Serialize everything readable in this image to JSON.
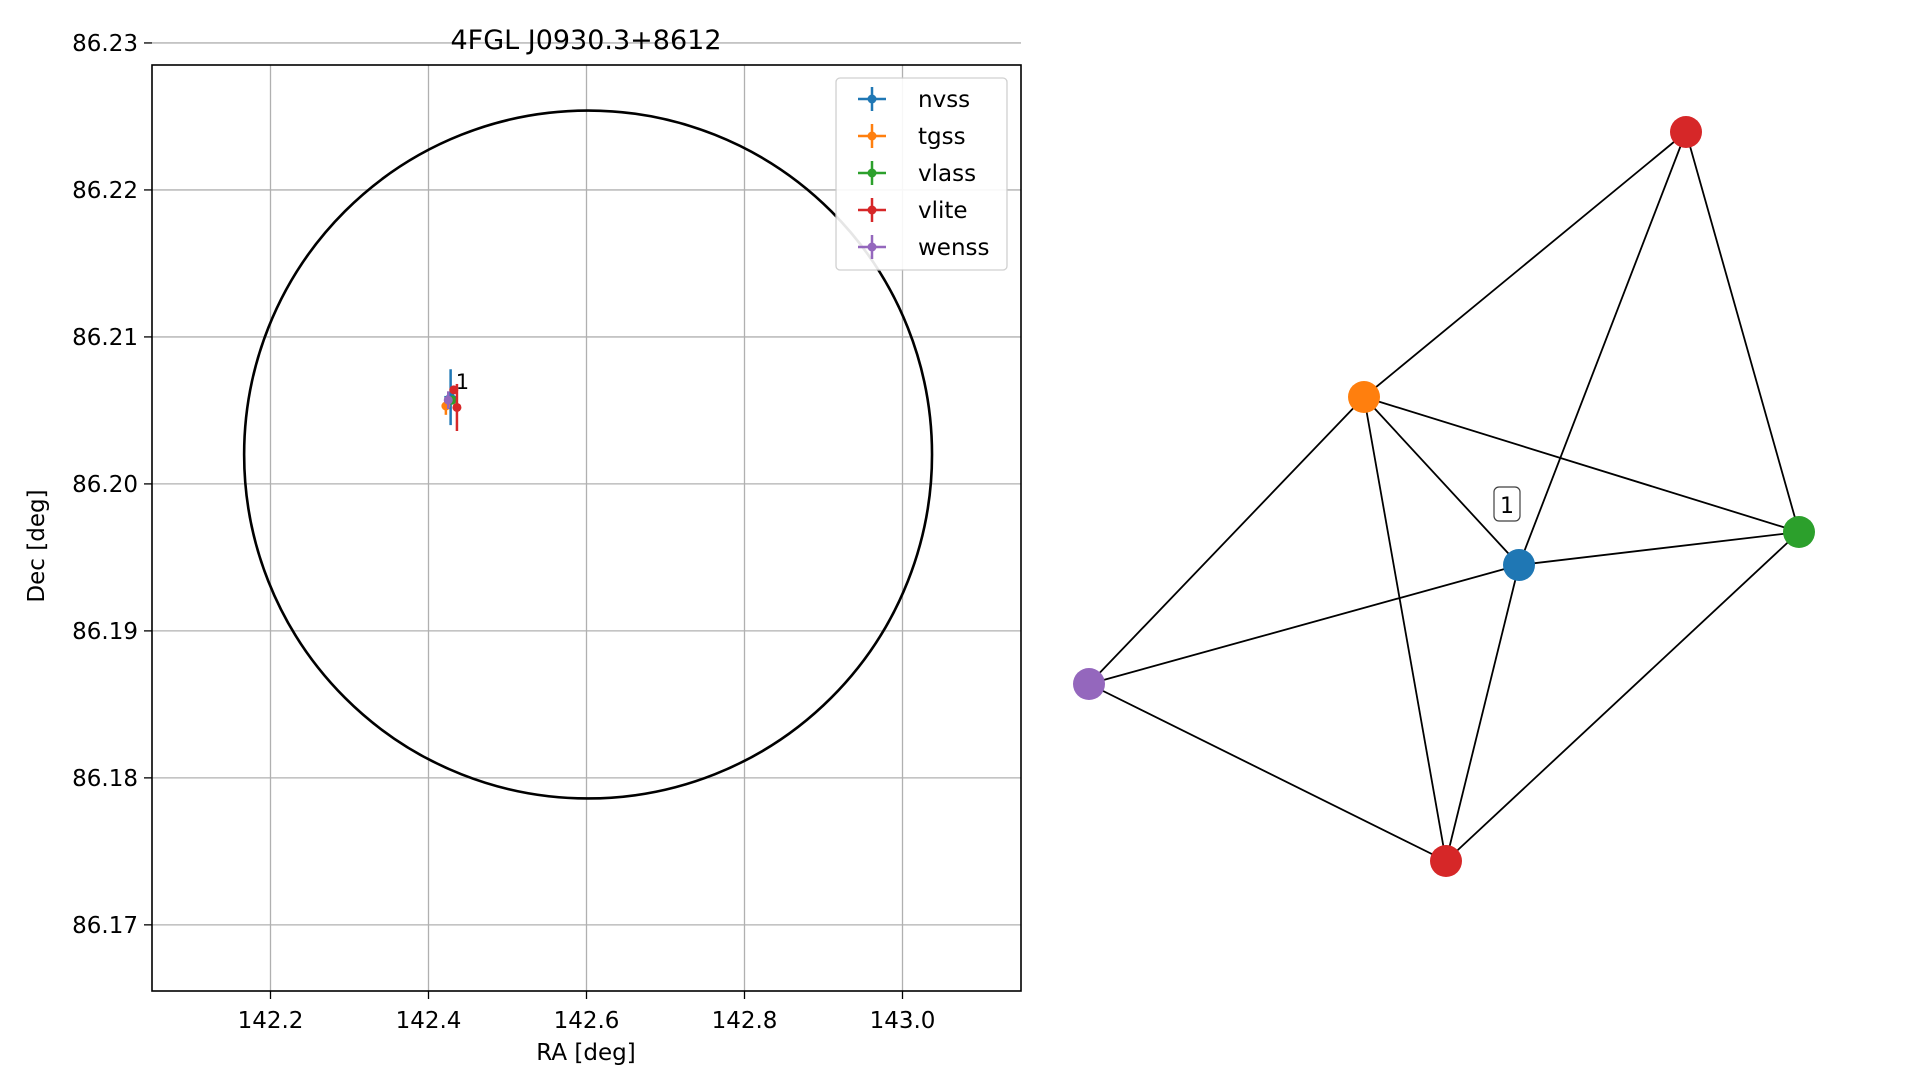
{
  "chart_data": [
    {
      "type": "scatter",
      "title": "4FGL J0930.3+8612",
      "xlabel": "RA [deg]",
      "ylabel": "Dec [deg]",
      "xlim": [
        142.05,
        143.15
      ],
      "ylim": [
        86.1655,
        86.2285
      ],
      "xticks": [
        142.2,
        142.4,
        142.6,
        142.8,
        143.0
      ],
      "xtick_labels": [
        "142.2",
        "142.4",
        "142.6",
        "142.8",
        "143.0"
      ],
      "yticks": [
        86.17,
        86.18,
        86.19,
        86.2,
        86.21,
        86.22,
        86.23
      ],
      "ytick_labels": [
        "86.17",
        "86.18",
        "86.19",
        "86.20",
        "86.21",
        "86.22",
        "86.23"
      ],
      "grid": true,
      "legend_position": "top-right",
      "series": [
        {
          "name": "nvss",
          "color": "#1f77b4",
          "x": 142.428,
          "y": 86.2059,
          "xerr": 0.008,
          "yerr": 0.0019
        },
        {
          "name": "tgss",
          "color": "#ff7f0e",
          "x": 142.422,
          "y": 86.2053,
          "xerr": 0.004,
          "yerr": 0.0006
        },
        {
          "name": "vlass",
          "color": "#2ca02c",
          "x": 142.43,
          "y": 86.2057,
          "xerr": 0.001,
          "yerr": 0.0003
        },
        {
          "name": "vlite",
          "color": "#d62728",
          "x": 142.436,
          "y": 86.2052,
          "xerr": 0.004,
          "yerr": 0.0016
        },
        {
          "name": "wenss",
          "color": "#9467bd",
          "x": 142.425,
          "y": 86.2057,
          "xerr": 0.005,
          "yerr": 0.0006
        }
      ],
      "extra_point": {
        "color": "#d62728",
        "x": 142.432,
        "y": 86.2064
      },
      "annotation": {
        "text": "1",
        "x": 142.432,
        "y": 86.2066
      },
      "circle": {
        "center_x": 142.602,
        "center_y": 86.202,
        "radius_dec": 0.0234,
        "color": "#000000"
      }
    },
    {
      "type": "diagram",
      "label": "1",
      "nodes": [
        {
          "id": "nvss",
          "color": "#1f77b4"
        },
        {
          "id": "tgss",
          "color": "#ff7f0e"
        },
        {
          "id": "vlass",
          "color": "#2ca02c"
        },
        {
          "id": "vlite_a",
          "color": "#d62728"
        },
        {
          "id": "vlite_b",
          "color": "#d62728"
        },
        {
          "id": "wenss",
          "color": "#9467bd"
        }
      ],
      "edges": [
        [
          "tgss",
          "vlite_a"
        ],
        [
          "tgss",
          "vlass"
        ],
        [
          "tgss",
          "nvss"
        ],
        [
          "tgss",
          "wenss"
        ],
        [
          "tgss",
          "vlite_b"
        ],
        [
          "vlite_a",
          "nvss"
        ],
        [
          "vlite_a",
          "vlass"
        ],
        [
          "nvss",
          "vlass"
        ],
        [
          "nvss",
          "wenss"
        ],
        [
          "nvss",
          "vlite_b"
        ],
        [
          "wenss",
          "vlite_b"
        ],
        [
          "vlass",
          "vlite_b"
        ]
      ]
    }
  ]
}
